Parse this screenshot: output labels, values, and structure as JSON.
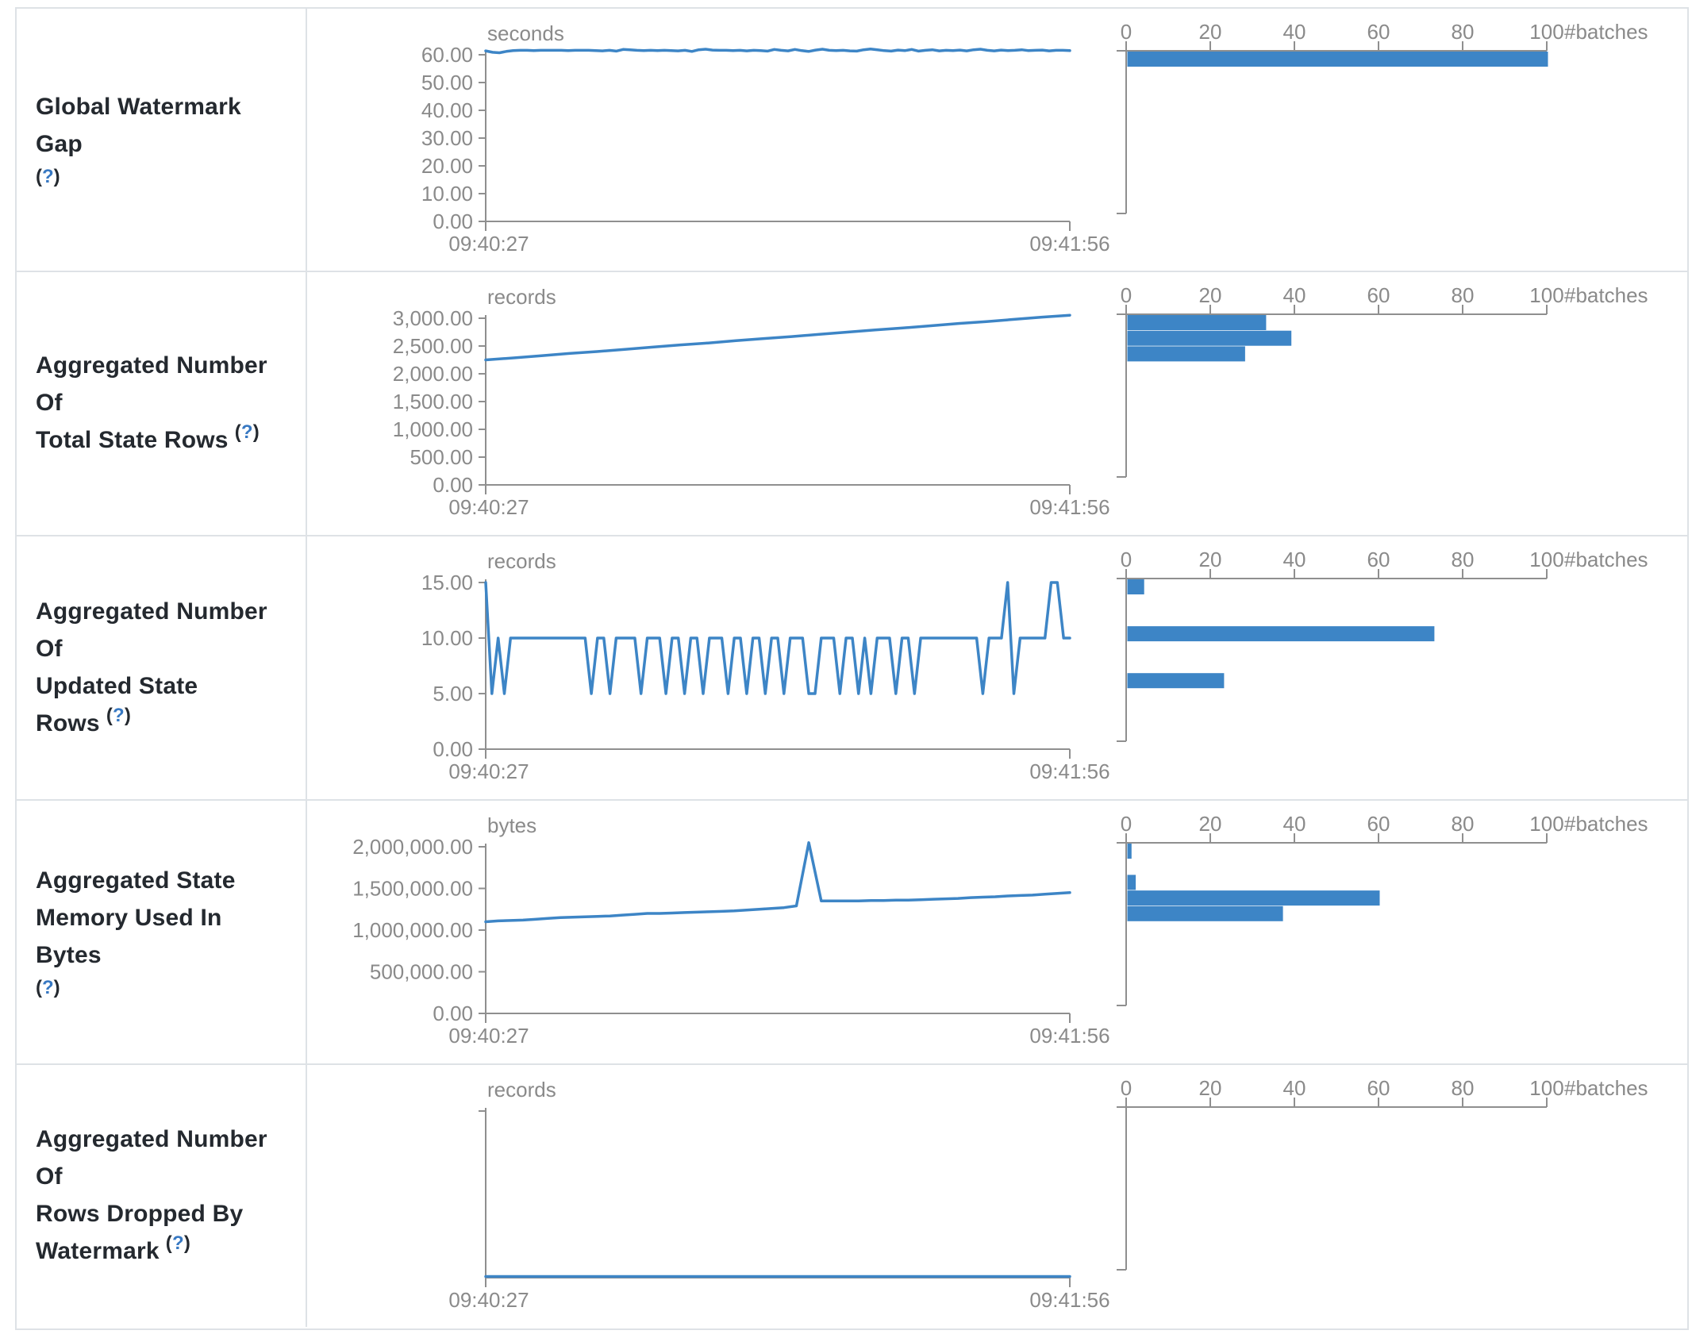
{
  "accent_colors": {
    "series_blue": "#3d85c6",
    "axis_gray": "#8f8f8f",
    "tick_text_gray": "#8a8a8a",
    "border_gray": "#dee2e6",
    "label_text": "#24292f",
    "help_link_blue": "#3778c2"
  },
  "time_axis": {
    "start_label": "09:40:27",
    "end_label": "09:41:56"
  },
  "histogram_axis": {
    "tick_values": [
      0,
      20,
      40,
      60,
      80,
      100
    ],
    "tick_labels": [
      "0",
      "20",
      "40",
      "60",
      "80",
      "100"
    ],
    "unit_label": "#batches",
    "max": 100
  },
  "metrics": [
    {
      "name_lines": [
        "Global Watermark Gap"
      ],
      "help_text": "(?)",
      "help_own_line": true
    },
    {
      "name_lines": [
        "Aggregated Number Of",
        "Total State Rows"
      ],
      "help_text": "(?)",
      "help_own_line": false
    },
    {
      "name_lines": [
        "Aggregated Number Of",
        "Updated State Rows"
      ],
      "help_text": "(?)",
      "help_own_line": false
    },
    {
      "name_lines": [
        "Aggregated State",
        "Memory Used In Bytes"
      ],
      "help_text": "(?)",
      "help_own_line": true
    },
    {
      "name_lines": [
        "Aggregated Number Of",
        "Rows Dropped By",
        "Watermark"
      ],
      "help_text": "(?)",
      "help_own_line": false
    }
  ],
  "chart_data": [
    {
      "metric": "Global Watermark Gap",
      "timeline": {
        "type": "line",
        "unit": "seconds",
        "y_tick_labels": [
          "60.00",
          "50.00",
          "40.00",
          "30.00",
          "20.00",
          "10.00",
          "0.00"
        ],
        "y_tick_values": [
          60,
          50,
          40,
          30,
          20,
          10,
          0
        ],
        "y_top": 60,
        "x_start": "09:40:27",
        "x_end": "09:41:56",
        "values": [
          61.4,
          60.9,
          60.7,
          61.2,
          61.5,
          61.6,
          61.6,
          61.5,
          61.6,
          61.6,
          61.6,
          61.6,
          61.5,
          61.6,
          61.6,
          61.6,
          61.5,
          61.4,
          61.6,
          61.3,
          61.9,
          61.8,
          61.6,
          61.5,
          61.6,
          61.5,
          61.6,
          61.5,
          61.4,
          61.6,
          61.2,
          61.8,
          62.0,
          61.7,
          61.6,
          61.6,
          61.5,
          61.6,
          61.4,
          61.6,
          61.5,
          61.3,
          61.9,
          61.6,
          61.4,
          61.9,
          61.5,
          61.2,
          61.7,
          62.0,
          61.6,
          61.5,
          61.6,
          61.4,
          61.3,
          61.8,
          62.1,
          61.8,
          61.5,
          61.3,
          61.7,
          61.5,
          61.9,
          61.3,
          61.6,
          61.8,
          61.4,
          61.6,
          61.5,
          61.7,
          61.4,
          61.8,
          62.0,
          61.6,
          61.4,
          61.7,
          61.5,
          61.6,
          61.8,
          61.5,
          61.6,
          61.7,
          61.4,
          61.6,
          61.6,
          61.5
        ]
      },
      "histogram": {
        "type": "bar",
        "unit": "#batches",
        "x_ticks": [
          0,
          20,
          40,
          60,
          80,
          100
        ],
        "bars": [
          {
            "count": 100,
            "slot": 0
          }
        ]
      }
    },
    {
      "metric": "Aggregated Number Of Total State Rows",
      "timeline": {
        "type": "line",
        "unit": "records",
        "y_tick_labels": [
          "3,000.00",
          "2,500.00",
          "2,000.00",
          "1,500.00",
          "1,000.00",
          "500.00",
          "0.00"
        ],
        "y_tick_values": [
          3000,
          2500,
          2000,
          1500,
          1000,
          500,
          0
        ],
        "y_top": 3000,
        "x_start": "09:40:27",
        "x_end": "09:41:56",
        "values": [
          2250,
          2285,
          2325,
          2365,
          2400,
          2440,
          2480,
          2520,
          2555,
          2595,
          2635,
          2670,
          2710,
          2750,
          2790,
          2825,
          2865,
          2905,
          2940,
          2980,
          3020,
          3055
        ]
      },
      "histogram": {
        "type": "bar",
        "unit": "#batches",
        "x_ticks": [
          0,
          20,
          40,
          60,
          80,
          100
        ],
        "bars": [
          {
            "count": 33,
            "slot": 0
          },
          {
            "count": 39,
            "slot": 1
          },
          {
            "count": 28,
            "slot": 2
          }
        ]
      }
    },
    {
      "metric": "Aggregated Number Of Updated State Rows",
      "timeline": {
        "type": "line",
        "unit": "records",
        "y_tick_labels": [
          "15.00",
          "10.00",
          "5.00",
          "0.00"
        ],
        "y_tick_values": [
          15,
          10,
          5,
          0
        ],
        "y_top": 15,
        "x_start": "09:40:27",
        "x_end": "09:41:56",
        "values": [
          15,
          5,
          10,
          5,
          10,
          10,
          10,
          10,
          10,
          10,
          10,
          10,
          10,
          10,
          10,
          10,
          10,
          5,
          10,
          10,
          5,
          10,
          10,
          10,
          10,
          5,
          10,
          10,
          10,
          5,
          10,
          10,
          5,
          10,
          10,
          5,
          10,
          10,
          10,
          5,
          10,
          10,
          5,
          10,
          10,
          5,
          10,
          10,
          5,
          10,
          10,
          10,
          5,
          5,
          10,
          10,
          10,
          5,
          10,
          10,
          5,
          10,
          5,
          10,
          10,
          10,
          5,
          10,
          10,
          5,
          10,
          10,
          10,
          10,
          10,
          10,
          10,
          10,
          10,
          10,
          5,
          10,
          10,
          10,
          15,
          5,
          10,
          10,
          10,
          10,
          10,
          15,
          15,
          10,
          10
        ]
      },
      "histogram": {
        "type": "bar",
        "unit": "#batches",
        "x_ticks": [
          0,
          20,
          40,
          60,
          80,
          100
        ],
        "bars": [
          {
            "count": 4,
            "slot": 0
          },
          {
            "count": 73,
            "slot": 3
          },
          {
            "count": 23,
            "slot": 6
          }
        ]
      }
    },
    {
      "metric": "Aggregated State Memory Used In Bytes",
      "timeline": {
        "type": "line",
        "unit": "bytes",
        "y_tick_labels": [
          "2,000,000.00",
          "1,500,000.00",
          "1,000,000.00",
          "500,000.00",
          "0.00"
        ],
        "y_tick_values": [
          2000000,
          1500000,
          1000000,
          500000,
          0
        ],
        "y_top": 2000000,
        "x_start": "09:40:27",
        "x_end": "09:41:56",
        "values": [
          1100000,
          1110000,
          1115000,
          1120000,
          1130000,
          1140000,
          1150000,
          1155000,
          1160000,
          1165000,
          1170000,
          1180000,
          1190000,
          1200000,
          1200000,
          1205000,
          1210000,
          1215000,
          1220000,
          1225000,
          1230000,
          1240000,
          1250000,
          1260000,
          1270000,
          1290000,
          2050000,
          1350000,
          1350000,
          1350000,
          1350000,
          1355000,
          1355000,
          1360000,
          1360000,
          1365000,
          1370000,
          1375000,
          1380000,
          1390000,
          1395000,
          1400000,
          1410000,
          1415000,
          1420000,
          1430000,
          1440000,
          1450000
        ]
      },
      "histogram": {
        "type": "bar",
        "unit": "#batches",
        "x_ticks": [
          0,
          20,
          40,
          60,
          80,
          100
        ],
        "bars": [
          {
            "count": 1,
            "slot": 0
          },
          {
            "count": 2,
            "slot": 2
          },
          {
            "count": 60,
            "slot": 3
          },
          {
            "count": 37,
            "slot": 4
          }
        ]
      }
    },
    {
      "metric": "Aggregated Number Of Rows Dropped By Watermark",
      "timeline": {
        "type": "line",
        "unit": "records",
        "y_tick_labels": [],
        "y_tick_values": [],
        "y_top": null,
        "x_start": "09:40:27",
        "x_end": "09:41:56",
        "values": [
          0,
          0
        ]
      },
      "histogram": {
        "type": "bar",
        "unit": "#batches",
        "x_ticks": [
          0,
          20,
          40,
          60,
          80,
          100
        ],
        "bars": []
      }
    }
  ]
}
